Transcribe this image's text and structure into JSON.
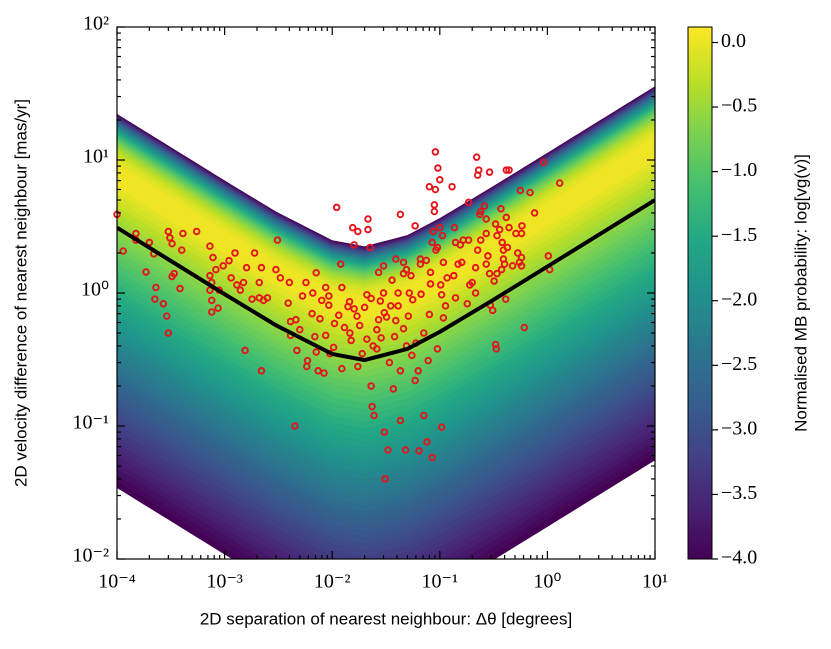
{
  "chart_data": {
    "type": "scatter",
    "xlabel": "2D separation of nearest neighbour: Δθ [degrees]",
    "ylabel": "2D velocity difference of nearest neighbour [mas/yr]",
    "xscale": "log",
    "yscale": "log",
    "xlim": [
      0.0001,
      10
    ],
    "ylim": [
      0.01,
      100
    ],
    "xticks": [
      {
        "value": 0.0001,
        "label": "10⁻⁴"
      },
      {
        "value": 0.001,
        "label": "10⁻³"
      },
      {
        "value": 0.01,
        "label": "10⁻²"
      },
      {
        "value": 0.1,
        "label": "10⁻¹"
      },
      {
        "value": 1,
        "label": "10⁰"
      },
      {
        "value": 10,
        "label": "10¹"
      }
    ],
    "yticks": [
      {
        "value": 0.01,
        "label": "10⁻²"
      },
      {
        "value": 0.1,
        "label": "10⁻¹"
      },
      {
        "value": 1,
        "label": "10⁰"
      },
      {
        "value": 10,
        "label": "10¹"
      },
      {
        "value": 100,
        "label": "10²"
      }
    ],
    "colorbar": {
      "label": "Normalised MB probability: log[vg(v)]",
      "cmap": "viridis",
      "lim": [
        -4.0,
        0.12
      ],
      "ticks": [
        {
          "value": 0.0,
          "label": "0.0"
        },
        {
          "value": -0.5,
          "label": "−0.5"
        },
        {
          "value": -1.0,
          "label": "−1.0"
        },
        {
          "value": -1.5,
          "label": "−1.5"
        },
        {
          "value": -2.0,
          "label": "−2.0"
        },
        {
          "value": -2.5,
          "label": "−2.5"
        },
        {
          "value": -3.0,
          "label": "−3.0"
        },
        {
          "value": -3.5,
          "label": "−3.5"
        },
        {
          "value": -4.0,
          "label": "−4.0"
        }
      ]
    },
    "series": [
      {
        "type": "scatter",
        "color": "#e5141b",
        "x": [
          0.0001,
          0.000114,
          0.00015,
          0.00015,
          0.0002,
          0.00022,
          0.000186,
          0.00023,
          0.000225,
          0.00027,
          0.0003,
          0.00031,
          0.000325,
          0.00029,
          0.0003,
          0.00034,
          0.000325,
          0.00041,
          0.0004,
          0.000385,
          0.00055,
          0.00073,
          0.00078,
          0.00083,
          0.00073,
          0.00076,
          0.00076,
          0.00076,
          0.00073,
          0.00089,
          0.00087,
          0.00097,
          0.0011,
          0.00125,
          0.0013,
          0.00115,
          0.0014,
          0.0015,
          0.0016,
          0.0018,
          0.0019,
          0.0021,
          0.0023,
          0.0022,
          0.0025,
          0.0022,
          0.0021,
          0.0031,
          0.003,
          0.0033,
          0.004,
          0.0041,
          0.0039,
          0.0041,
          0.00155,
          0.0046,
          0.0047,
          0.0045,
          0.0053,
          0.005,
          0.0057,
          0.0058,
          0.0059,
          0.0065,
          0.0066,
          0.0071,
          0.0069,
          0.0071,
          0.0074,
          0.0077,
          0.008,
          0.0084,
          0.0087,
          0.0087,
          0.0093,
          0.0093,
          0.0095,
          0.0103,
          0.0105,
          0.011,
          0.0115,
          0.012,
          0.0123,
          0.0123,
          0.013,
          0.014,
          0.0145,
          0.0146,
          0.015,
          0.0155,
          0.016,
          0.016,
          0.017,
          0.0173,
          0.0173,
          0.018,
          0.019,
          0.02,
          0.021,
          0.021,
          0.0215,
          0.0215,
          0.0225,
          0.023,
          0.023,
          0.0235,
          0.0245,
          0.024,
          0.026,
          0.026,
          0.027,
          0.027,
          0.028,
          0.0285,
          0.03,
          0.03,
          0.0305,
          0.0305,
          0.031,
          0.033,
          0.032,
          0.034,
          0.035,
          0.036,
          0.037,
          0.038,
          0.039,
          0.039,
          0.041,
          0.041,
          0.043,
          0.043,
          0.043,
          0.046,
          0.046,
          0.046,
          0.048,
          0.049,
          0.049,
          0.051,
          0.052,
          0.054,
          0.055,
          0.056,
          0.059,
          0.059,
          0.06,
          0.063,
          0.064,
          0.066,
          0.066,
          0.067,
          0.071,
          0.071,
          0.075,
          0.076,
          0.078,
          0.08,
          0.08,
          0.082,
          0.082,
          0.085,
          0.085,
          0.087,
          0.089,
          0.089,
          0.091,
          0.091,
          0.092,
          0.095,
          0.095,
          0.096,
          0.1,
          0.1,
          0.102,
          0.104,
          0.104,
          0.106,
          0.108,
          0.108,
          0.113,
          0.117,
          0.13,
          0.135,
          0.137,
          0.14,
          0.14,
          0.148,
          0.155,
          0.16,
          0.165,
          0.18,
          0.185,
          0.185,
          0.19,
          0.2,
          0.215,
          0.215,
          0.22,
          0.225,
          0.225,
          0.23,
          0.235,
          0.24,
          0.24,
          0.26,
          0.27,
          0.27,
          0.27,
          0.28,
          0.29,
          0.29,
          0.295,
          0.31,
          0.32,
          0.33,
          0.33,
          0.335,
          0.34,
          0.34,
          0.36,
          0.37,
          0.375,
          0.38,
          0.39,
          0.39,
          0.4,
          0.41,
          0.415,
          0.415,
          0.425,
          0.44,
          0.44,
          0.475,
          0.51,
          0.53,
          0.55,
          0.575,
          0.575,
          0.575,
          0.56,
          0.58,
          0.61,
          0.69,
          0.76,
          0.92,
          1.02,
          1.05,
          1.3
        ],
        "values": [
          3.9,
          2.07,
          2.8,
          2.5,
          2.4,
          1.97,
          1.44,
          1.1,
          0.9,
          0.83,
          2.9,
          2.6,
          2.35,
          0.67,
          0.5,
          1.4,
          1.33,
          2.8,
          2.1,
          1.08,
          2.9,
          2.25,
          1.85,
          1.5,
          1.35,
          1.2,
          0.88,
          0.72,
          1.05,
          1.05,
          0.77,
          1.6,
          1.75,
          2.0,
          1.15,
          1.3,
          1.05,
          1.2,
          1.55,
          0.9,
          2.0,
          0.92,
          0.88,
          1.55,
          0.92,
          0.26,
          1.2,
          2.5,
          1.5,
          1.3,
          1.2,
          0.61,
          0.84,
          0.48,
          0.37,
          0.63,
          0.37,
          0.1,
          0.95,
          0.53,
          1.2,
          0.28,
          0.31,
          0.7,
          1.0,
          1.42,
          0.47,
          0.36,
          0.26,
          0.64,
          0.88,
          0.25,
          1.1,
          0.48,
          0.95,
          0.81,
          0.35,
          0.39,
          0.59,
          4.4,
          0.68,
          1.65,
          1.1,
          0.27,
          0.55,
          0.79,
          0.86,
          0.5,
          0.44,
          3.1,
          2.3,
          0.76,
          0.67,
          2.9,
          0.28,
          0.57,
          0.35,
          0.78,
          0.45,
          0.97,
          3.6,
          3.0,
          2.2,
          0.91,
          0.2,
          0.14,
          0.12,
          0.4,
          0.53,
          0.38,
          1.43,
          0.63,
          0.87,
          0.46,
          1.0,
          1.6,
          0.71,
          0.09,
          0.04,
          0.066,
          0.66,
          0.3,
          0.8,
          1.25,
          0.19,
          0.47,
          1.8,
          0.62,
          1.0,
          0.8,
          3.9,
          0.26,
          0.11,
          1.7,
          0.54,
          1.4,
          0.066,
          0.4,
          1.5,
          0.67,
          1.0,
          1.35,
          0.34,
          0.89,
          3.2,
          0.22,
          0.42,
          0.26,
          0.065,
          1.65,
          1.8,
          0.98,
          0.5,
          0.12,
          1.76,
          0.076,
          0.31,
          6.3,
          0.69,
          1.43,
          1.17,
          0.058,
          2.4,
          2.9,
          4.6,
          4.1,
          11.5,
          6.0,
          2.1,
          2.2,
          0.38,
          8.7,
          7.1,
          3.1,
          1.15,
          0.97,
          0.098,
          2.7,
          1.7,
          0.65,
          0.8,
          1.3,
          6.3,
          1.35,
          3.1,
          2.4,
          0.92,
          1.65,
          2.3,
          1.7,
          2.5,
          0.83,
          4.8,
          2.5,
          1.15,
          1.2,
          1.0,
          1.55,
          10.5,
          7.7,
          2.1,
          8.4,
          3.9,
          4.1,
          2.5,
          4.5,
          2.8,
          3.6,
          1.65,
          1.9,
          8.1,
          1.4,
          0.81,
          0.74,
          1.23,
          3.3,
          0.41,
          0.38,
          2.7,
          1.4,
          3.0,
          4.3,
          1.5,
          2.4,
          2.1,
          1.8,
          1.65,
          0.9,
          8.4,
          3.7,
          2.2,
          8.4,
          3.1,
          1.6,
          2.8,
          2.0,
          1.7,
          1.6,
          2.8,
          1.85,
          5.9,
          3.2,
          0.55,
          5.7,
          4.0,
          9.6,
          1.9,
          1.5,
          6.7
        ]
      },
      {
        "type": "line",
        "color": "#000000",
        "x": [
          0.0001,
          0.0003,
          0.001,
          0.003,
          0.01,
          0.02,
          0.05,
          0.1,
          0.3,
          1,
          3,
          10
        ],
        "values": [
          3.1,
          1.79,
          0.98,
          0.572,
          0.348,
          0.313,
          0.38,
          0.51,
          0.868,
          1.58,
          2.74,
          5.0
        ]
      }
    ]
  }
}
